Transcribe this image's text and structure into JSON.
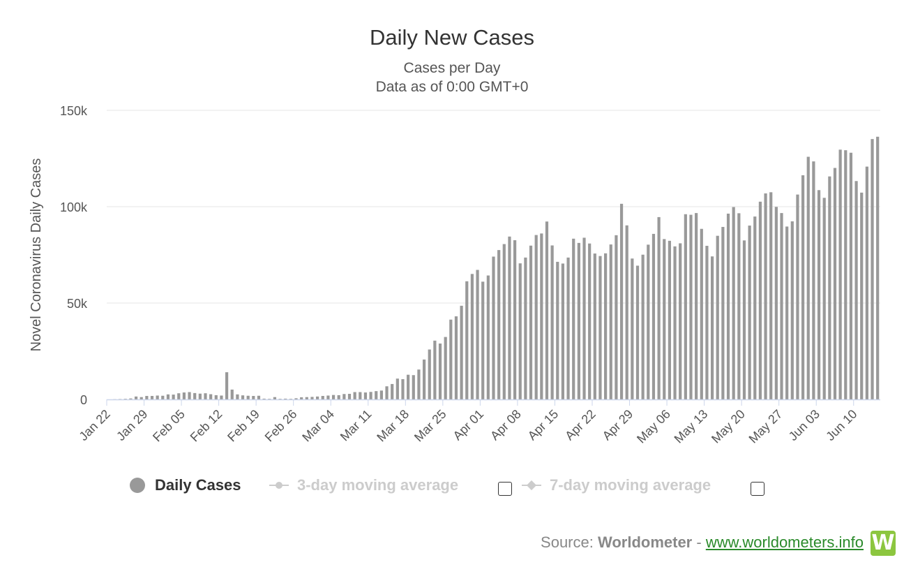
{
  "title": "Daily New Cases",
  "subtitle_line1": "Cases per Day",
  "subtitle_line2": "Data as of 0:00 GMT+0",
  "legend": {
    "daily": "Daily Cases",
    "avg3": "3-day moving average",
    "avg7": "7-day moving average"
  },
  "credits": {
    "prefix": "Source: ",
    "brand": "Worldometer",
    "sep": " - ",
    "link": "www.worldometers.info",
    "logo_letter": "W"
  },
  "colors": {
    "bar": "#999999",
    "grid": "#e6e6e6",
    "axis": "#ccd6eb",
    "legend_inactive": "#cccccc",
    "link": "#2a8a2a",
    "logo": "#8cc63f"
  },
  "chart_data": {
    "type": "bar",
    "title": "Daily New Cases",
    "subtitle": "Cases per Day",
    "ylabel": "Novel Coronavirus Daily Cases",
    "xlabel": "",
    "ylim": [
      0,
      150000
    ],
    "yticks": [
      0,
      50000,
      100000,
      150000
    ],
    "ytick_labels": [
      "0",
      "50k",
      "100k",
      "150k"
    ],
    "xtick_labels": [
      "Jan 22",
      "Jan 29",
      "Feb 05",
      "Feb 12",
      "Feb 19",
      "Feb 26",
      "Mar 04",
      "Mar 11",
      "Mar 18",
      "Mar 25",
      "Apr 01",
      "Apr 08",
      "Apr 15",
      "Apr 22",
      "Apr 29",
      "May 06",
      "May 13",
      "May 20",
      "May 27",
      "Jun 03",
      "Jun 10"
    ],
    "xtick_every": 7,
    "start_date": "Jan 22",
    "grid": true,
    "legend_position": "bottom",
    "series": [
      {
        "name": "Daily Cases",
        "values": [
          0,
          100,
          200,
          300,
          500,
          1500,
          1200,
          1800,
          1800,
          2000,
          1900,
          2600,
          2500,
          3200,
          3600,
          3800,
          3300,
          3000,
          3200,
          2700,
          2200,
          2000,
          14100,
          5100,
          2600,
          2100,
          1900,
          1800,
          1900,
          400,
          300,
          1200,
          300,
          400,
          300,
          600,
          1100,
          1200,
          1300,
          1500,
          1800,
          2000,
          2300,
          2200,
          2800,
          2900,
          3800,
          3800,
          3600,
          3900,
          4300,
          4600,
          6800,
          8000,
          10800,
          10500,
          12800,
          12600,
          15500,
          20700,
          25900,
          30500,
          29000,
          32400,
          41400,
          43100,
          48600,
          61300,
          65100,
          67200,
          61100,
          64300,
          74100,
          77500,
          80600,
          84500,
          82600,
          70600,
          73600,
          79800,
          85300,
          86100,
          92300,
          79900,
          71400,
          70500,
          73600,
          83400,
          81200,
          83900,
          80900,
          75700,
          74400,
          75800,
          80400,
          85200,
          101500,
          90300,
          73100,
          69400,
          75100,
          80300,
          85900,
          94600,
          83200,
          82300,
          79400,
          81000,
          96100,
          95800,
          96700,
          88500,
          79700,
          74200,
          84900,
          89500,
          96400,
          99800,
          96600,
          82500,
          90200,
          94900,
          102600,
          106900,
          107500,
          99900,
          96700,
          89700,
          92400,
          106300,
          116300,
          125900,
          123500,
          108600,
          104600,
          115700,
          120100,
          129600,
          129300,
          128000,
          113300,
          107300,
          120800,
          135100,
          136300
        ]
      }
    ]
  }
}
